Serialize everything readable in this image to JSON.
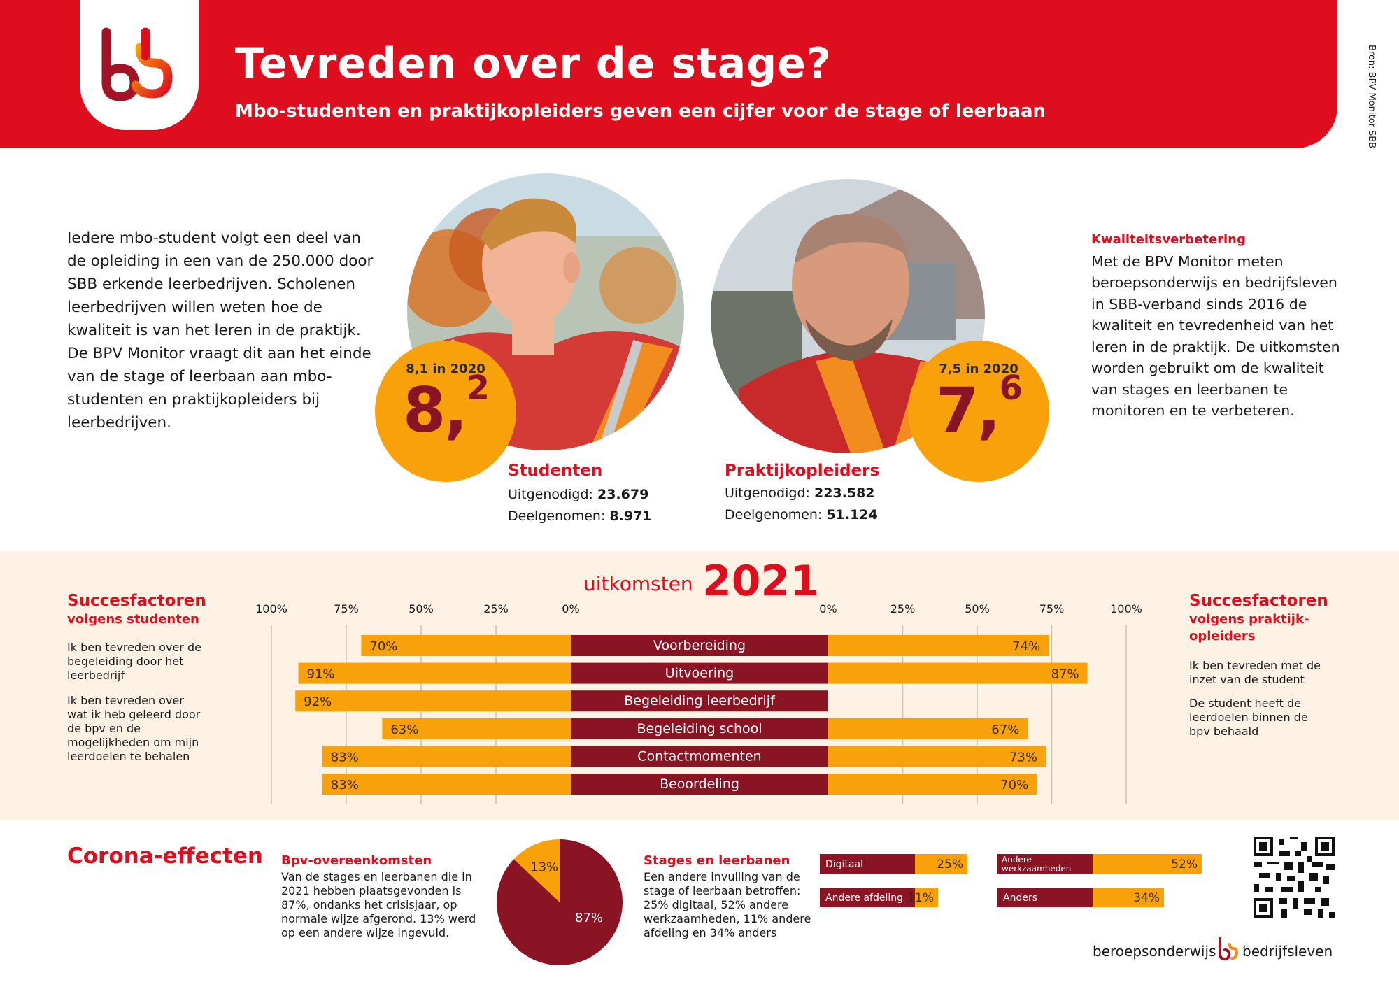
{
  "header": {
    "title": "Tevreden over de stage?",
    "subtitle": "Mbo-studenten en praktijkopleiders geven een cijfer voor de stage of leerbaan",
    "source": "Bron: BPV Monitor SBB",
    "brand_color": "#de0e1f"
  },
  "intro": {
    "text": "Iedere mbo-student volgt een deel van de opleiding in een van de 250.000 door SBB erkende leerbedrijven. Scholenen leerbedrijven willen weten hoe de kwaliteit is van het leren in de praktijk. De BPV Monitor vraagt dit aan het einde van de stage of leerbaan aan mbo-studenten en praktijkopleiders bij leerbedrijven."
  },
  "quality": {
    "title": "Kwaliteitsverbetering",
    "text": "Met de BPV Monitor meten beroepsonderwijs en bedrijfsleven in SBB-verband sinds 2016 de kwaliteit en tevredenheid van het leren in de praktijk. De uitkomsten worden gebruikt om de kwaliteit van stages en leerbanen te monitoren en te verbeteren."
  },
  "students": {
    "previous": "8,1 in 2020",
    "score_main": "8,",
    "score_decimal": "2",
    "title": "Studenten",
    "invited_label": "Uitgenodigd:",
    "invited_value": "23.679",
    "participated_label": "Deelgenomen:",
    "participated_value": "8.971"
  },
  "trainers": {
    "previous": "7,5 in 2020",
    "score_main": "7,",
    "score_decimal": "6",
    "title": "Praktijkopleiders",
    "invited_label": "Uitgenodigd:",
    "invited_value": "223.582",
    "participated_label": "Deelgenomen:",
    "participated_value": "51.124"
  },
  "results": {
    "label": "uitkomsten",
    "year": "2021",
    "left": {
      "title": "Succesfactoren",
      "subtitle": "volgens studenten",
      "item1": "Ik ben tevreden over de begeleiding door het leerbedrijf",
      "item2": "Ik ben tevreden over wat ik heb geleerd door de bpv en de mogelijkheden om mijn leerdoelen te behalen"
    },
    "right": {
      "title": "Succesfactoren",
      "subtitle": "volgens praktijk-opleiders",
      "item1": "Ik ben tevreden met de inzet van de student",
      "item2": "De student heeft de leerdoelen binnen de bpv behaald"
    }
  },
  "chart_data": [
    {
      "type": "bar",
      "categories": [
        "Voorbereiding",
        "Uitvoering",
        "Begeleiding leerbedrijf",
        "Begeleiding school",
        "Contactmomenten",
        "Beoordeling"
      ],
      "series": [
        {
          "name": "Studenten",
          "values": [
            70,
            91,
            92,
            63,
            83,
            83
          ]
        },
        {
          "name": "Praktijkopleiders",
          "values": [
            74,
            87,
            null,
            67,
            73,
            70
          ]
        }
      ],
      "tick_labels": [
        "100%",
        "75%",
        "50%",
        "25%",
        "0%"
      ],
      "ylim": [
        0,
        100
      ],
      "grid": true,
      "colors": {
        "bar": "#f9a10a",
        "category": "#8a1423",
        "grid": "#c9c2b6"
      }
    },
    {
      "type": "pie",
      "title": "Bpv-overeenkomsten",
      "categories": [
        "normaal afgerond",
        "andere wijze ingevuld"
      ],
      "values": [
        87,
        13
      ],
      "value_labels": [
        "87%",
        "13%"
      ],
      "colors": [
        "#8a1423",
        "#f9a10a"
      ]
    },
    {
      "type": "bar",
      "title": "Stages en leerbanen",
      "categories": [
        "Digitaal",
        "Andere afdeling",
        "Andere werkzaamheden",
        "Anders"
      ],
      "values": [
        25,
        11,
        52,
        34
      ],
      "value_labels": [
        "25%",
        "11%",
        "52%",
        "34%"
      ],
      "colors": {
        "label": "#8a1423",
        "bar": "#f9a10a"
      }
    }
  ],
  "corona": {
    "title": "Corona-effecten",
    "bpv_title": "Bpv-overeenkomsten",
    "bpv_text": "Van de stages en leerbanen die in 2021 hebben plaatsgevonden is 87%, ondanks het crisisjaar, op normale wijze afgerond. 13% werd op een andere wijze ingevuld.",
    "stages_title": "Stages en leerbanen",
    "stages_text": "Een andere invulling van de stage of leerbaan betroffen: 25% digitaal, 52% andere werkzaamheden, 11% andere afdeling en 34% anders"
  },
  "footer": {
    "left": "beroepsonderwijs",
    "right": "bedrijfsleven"
  },
  "icons": {
    "logo": "sbb-logo-icon",
    "qr": "qr-code-icon"
  }
}
